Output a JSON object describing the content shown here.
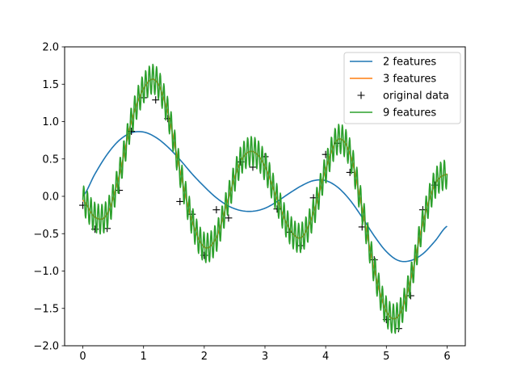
{
  "chart_data": {
    "type": "line",
    "title": "",
    "xlabel": "",
    "ylabel": "",
    "xlim": [
      -0.3,
      6.3
    ],
    "ylim": [
      -2.0,
      2.0
    ],
    "xticks": [
      0,
      1,
      2,
      3,
      4,
      5,
      6
    ],
    "xtick_labels": [
      "0",
      "1",
      "2",
      "3",
      "4",
      "5",
      "6"
    ],
    "yticks": [
      -2.0,
      -1.5,
      -1.0,
      -0.5,
      0.0,
      0.5,
      1.0,
      1.5,
      2.0
    ],
    "ytick_labels": [
      "−2.0",
      "−1.5",
      "−1.0",
      "−0.5",
      "0.0",
      "0.5",
      "1.0",
      "1.5",
      "2.0"
    ],
    "grid": false,
    "legend_position": "top-right",
    "series": [
      {
        "name": "2 features",
        "kind": "line",
        "color": "#1f77b4",
        "x": [
          0,
          0.2,
          0.4,
          0.6,
          0.8,
          1.0,
          1.2,
          1.4,
          1.6,
          1.8,
          2.0,
          2.2,
          2.4,
          2.6,
          2.8,
          3.0,
          3.2,
          3.4,
          3.6,
          3.8,
          4.0,
          4.2,
          4.4,
          4.6,
          4.8,
          5.0,
          5.2,
          5.4,
          5.6,
          5.8,
          6.0
        ],
        "y": [
          0.0,
          0.3,
          0.56,
          0.75,
          0.85,
          0.86,
          0.79,
          0.66,
          0.49,
          0.3,
          0.13,
          -0.02,
          -0.13,
          -0.19,
          -0.2,
          -0.16,
          -0.07,
          0.04,
          0.14,
          0.21,
          0.21,
          0.12,
          -0.05,
          -0.28,
          -0.53,
          -0.74,
          -0.86,
          -0.86,
          -0.77,
          -0.6,
          -0.4
        ]
      },
      {
        "name": "3 features",
        "kind": "line",
        "color": "#ff7f0e",
        "x": [
          0,
          0.2,
          0.4,
          0.6,
          0.8,
          1.0,
          1.2,
          1.4,
          1.6,
          1.8,
          2.0,
          2.2,
          2.4,
          2.6,
          2.8,
          3.0,
          3.2,
          3.4,
          3.6,
          3.8,
          4.0,
          4.2,
          4.4,
          4.6,
          4.8,
          5.0,
          5.2,
          5.4,
          5.6,
          5.8,
          6.0
        ],
        "y": [
          -0.05,
          -0.28,
          -0.24,
          0.28,
          1.0,
          1.44,
          1.55,
          1.12,
          0.34,
          -0.33,
          -0.68,
          -0.55,
          -0.02,
          0.47,
          0.6,
          0.4,
          -0.04,
          -0.43,
          -0.55,
          -0.22,
          0.36,
          0.76,
          0.57,
          -0.16,
          -0.98,
          -1.54,
          -1.6,
          -1.12,
          -0.36,
          0.16,
          0.3
        ]
      },
      {
        "name": "original data",
        "kind": "scatter",
        "marker": "+",
        "color": "#000000",
        "x": [
          0,
          0.2,
          0.4,
          0.6,
          0.8,
          1.0,
          1.2,
          1.4,
          1.6,
          1.8,
          2.0,
          2.2,
          2.4,
          2.6,
          2.8,
          3.0,
          3.2,
          3.4,
          3.6,
          3.8,
          4.0,
          4.2,
          4.4,
          4.6,
          4.8,
          5.0,
          5.2,
          5.4,
          5.6,
          5.8
        ],
        "y": [
          -0.12,
          -0.44,
          -0.43,
          0.08,
          0.87,
          1.32,
          1.29,
          1.04,
          -0.07,
          -0.24,
          -0.79,
          -0.18,
          -0.29,
          0.46,
          0.39,
          0.53,
          -0.17,
          -0.48,
          -0.66,
          -0.02,
          0.56,
          0.71,
          0.32,
          -0.41,
          -0.85,
          -1.65,
          -1.77,
          -1.33,
          -0.18,
          0.15
        ]
      },
      {
        "name": "9 features",
        "kind": "line",
        "color": "#2ca02c",
        "x": [
          0,
          0.2,
          0.4,
          0.6,
          0.8,
          1.0,
          1.2,
          1.4,
          1.6,
          1.8,
          2.0,
          2.2,
          2.4,
          2.6,
          2.8,
          3.0,
          3.2,
          3.4,
          3.6,
          3.8,
          4.0,
          4.2,
          4.4,
          4.6,
          4.8,
          5.0,
          5.2,
          5.4,
          5.6,
          5.8,
          6.0
        ],
        "y": [
          -0.05,
          -0.28,
          -0.24,
          0.28,
          1.0,
          1.44,
          1.55,
          1.12,
          0.34,
          -0.33,
          -0.68,
          -0.55,
          -0.02,
          0.47,
          0.6,
          0.4,
          -0.04,
          -0.43,
          -0.55,
          -0.22,
          0.36,
          0.76,
          0.57,
          -0.16,
          -0.98,
          -1.54,
          -1.6,
          -1.12,
          -0.36,
          0.16,
          0.3
        ],
        "oscillation_amplitude": 0.2,
        "oscillation_period": 0.06
      }
    ]
  }
}
